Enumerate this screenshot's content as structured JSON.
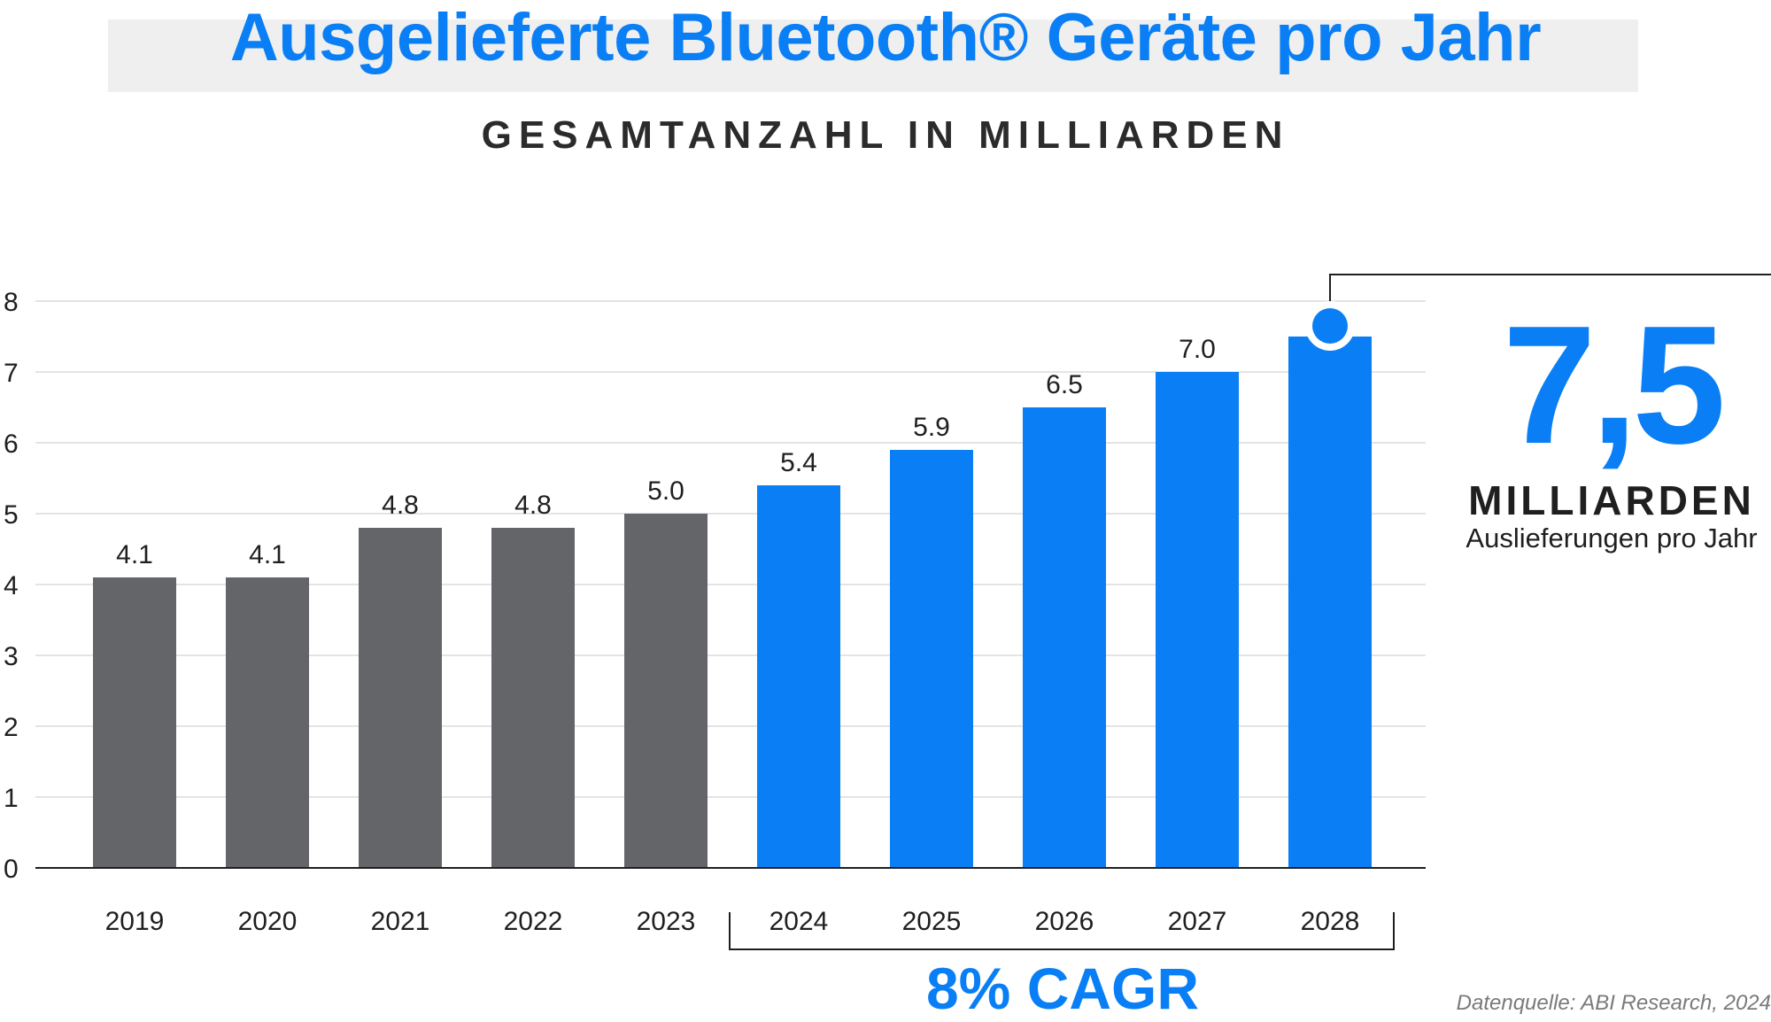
{
  "header": {
    "title": "Ausgelieferte Bluetooth® Geräte pro Jahr",
    "subtitle": "GESAMTANZAHL IN MILLIARDEN"
  },
  "highlight": {
    "value": "7,5",
    "unit": "MILLIARDEN",
    "caption": "Auslieferungen pro Jahr"
  },
  "cagr_label": "8% CAGR",
  "source": "Datenquelle: ABI Research, 2024",
  "colors": {
    "actual": "#646569",
    "forecast": "#0a7ff5",
    "text": "#1f1f1f"
  },
  "chart_data": {
    "type": "bar",
    "categories": [
      "2019",
      "2020",
      "2021",
      "2022",
      "2023",
      "2024",
      "2025",
      "2026",
      "2027",
      "2028"
    ],
    "values": [
      4.1,
      4.1,
      4.8,
      4.8,
      5.0,
      5.4,
      5.9,
      6.5,
      7.0,
      7.5
    ],
    "data_labels": [
      "4.1",
      "4.1",
      "4.8",
      "4.8",
      "5.0",
      "5.4",
      "5.9",
      "6.5",
      "7.0",
      ""
    ],
    "ylim": [
      0,
      8
    ],
    "yticks": [
      0,
      1,
      2,
      3,
      4,
      5,
      6,
      7,
      8
    ],
    "grid": true,
    "forecast_from": "2024",
    "cagr_range": [
      "2024",
      "2028"
    ]
  }
}
